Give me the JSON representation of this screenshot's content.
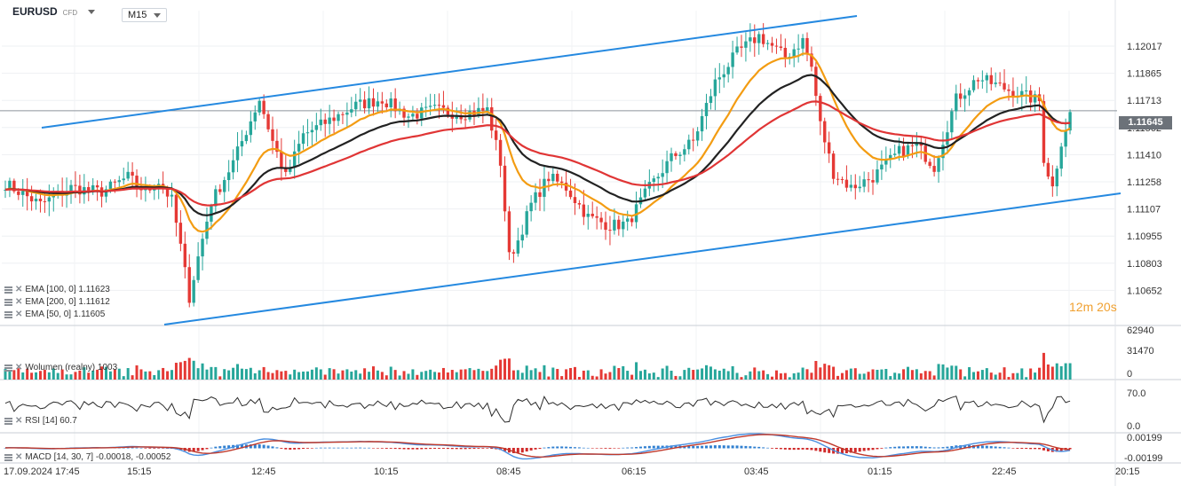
{
  "header": {
    "symbol": "EURUSD",
    "instrument_type": "CFD",
    "timeframe": "M15"
  },
  "timer": {
    "minutes": "12m",
    "seconds": "20s"
  },
  "indicators": {
    "ema100": "EMA [100, 0] 1.11623",
    "ema200": "EMA [200, 0] 1.11612",
    "ema50": "EMA [50, 0] 1.11605",
    "volume": "Wolumen (realny) 1003",
    "rsi": "RSI [14] 60.7",
    "macd": "MACD [14, 30, 7] -0.00018, -0.00052"
  },
  "colors": {
    "up": "#26a69a",
    "down": "#e53935",
    "trend": "#2589e0",
    "ema50": "#f39c12",
    "ema100": "#222222",
    "ema200": "#e03535"
  },
  "chart_data": {
    "type": "candlestick",
    "price_axis_ticks": [
      "1.12017",
      "1.11865",
      "1.11713",
      "1.11562",
      "1.11410",
      "1.11258",
      "1.11107",
      "1.10955",
      "1.10803",
      "1.10652"
    ],
    "price_range": [
      1.1063,
      1.1212
    ],
    "last_price": "1.11645",
    "volume_axis_ticks": [
      "62940",
      "31470",
      "0"
    ],
    "rsi_axis_ticks": [
      "70.0",
      "0.0"
    ],
    "macd_axis_ticks": [
      "0.00199",
      "-0.00199"
    ],
    "time_axis_ticks": [
      "17.09.2024 17:45",
      "15:15",
      "12:45",
      "10:15",
      "08:45",
      "06:15",
      "03:45",
      "01:15",
      "22:45",
      "20:15"
    ],
    "price_waypoints": [
      [
        0,
        1.113
      ],
      [
        8,
        1.112
      ],
      [
        15,
        1.1128
      ],
      [
        22,
        1.1126
      ],
      [
        28,
        1.1133
      ],
      [
        32,
        1.1126
      ],
      [
        35,
        1.1131
      ],
      [
        38,
        1.1122
      ],
      [
        40,
        1.11
      ],
      [
        42,
        1.1076
      ],
      [
        44,
        1.1095
      ],
      [
        47,
        1.1121
      ],
      [
        52,
        1.114
      ],
      [
        58,
        1.117
      ],
      [
        61,
        1.115
      ],
      [
        64,
        1.1133
      ],
      [
        68,
        1.1153
      ],
      [
        74,
        1.116
      ],
      [
        80,
        1.1167
      ],
      [
        86,
        1.117
      ],
      [
        92,
        1.1162
      ],
      [
        98,
        1.1165
      ],
      [
        104,
        1.1163
      ],
      [
        110,
        1.1165
      ],
      [
        113,
        1.114
      ],
      [
        115,
        1.1095
      ],
      [
        117,
        1.1103
      ],
      [
        120,
        1.112
      ],
      [
        124,
        1.1133
      ],
      [
        128,
        1.1128
      ],
      [
        133,
        1.1114
      ],
      [
        138,
        1.111
      ],
      [
        142,
        1.1111
      ],
      [
        147,
        1.1128
      ],
      [
        152,
        1.1142
      ],
      [
        157,
        1.115
      ],
      [
        162,
        1.1178
      ],
      [
        167,
        1.1192
      ],
      [
        172,
        1.12
      ],
      [
        178,
        1.119
      ],
      [
        182,
        1.1198
      ],
      [
        184,
        1.1185
      ],
      [
        186,
        1.1158
      ],
      [
        189,
        1.1135
      ],
      [
        193,
        1.1128
      ],
      [
        198,
        1.1133
      ],
      [
        204,
        1.1145
      ],
      [
        208,
        1.1148
      ],
      [
        212,
        1.1138
      ],
      [
        217,
        1.117
      ],
      [
        222,
        1.118
      ],
      [
        227,
        1.1176
      ],
      [
        232,
        1.1172
      ],
      [
        236,
        1.1169
      ],
      [
        237,
        1.1142
      ],
      [
        239,
        1.1128
      ],
      [
        241,
        1.115
      ],
      [
        243,
        1.1163
      ]
    ]
  }
}
